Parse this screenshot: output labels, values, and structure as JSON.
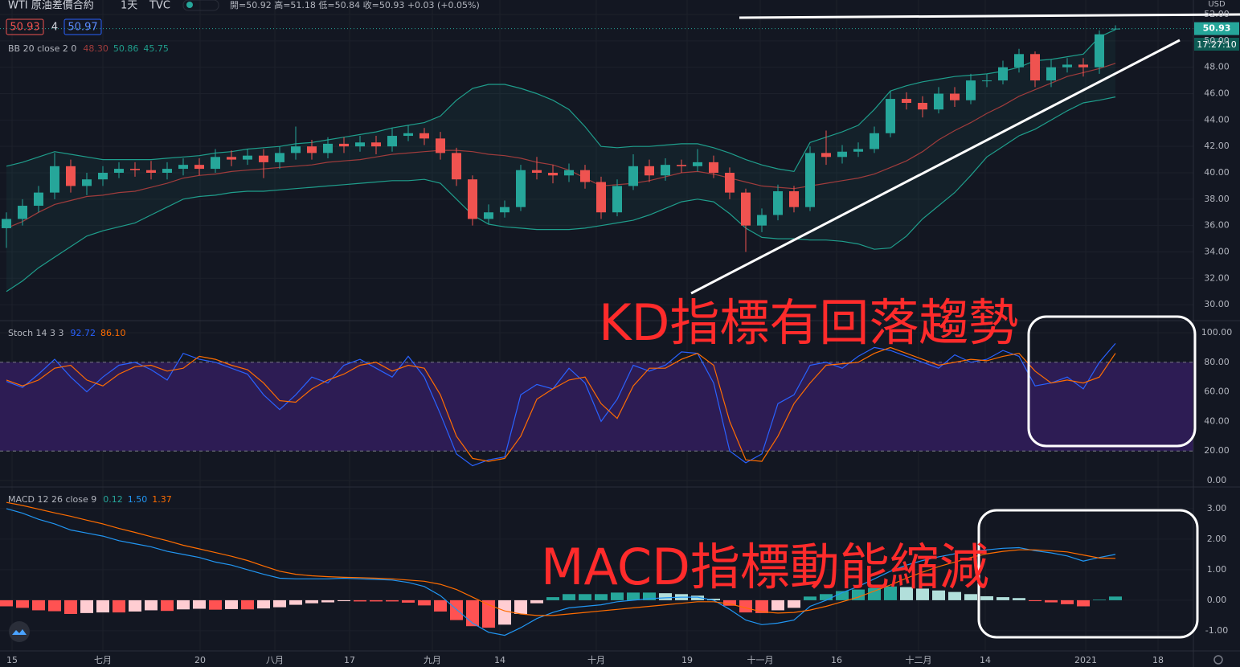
{
  "header": {
    "symbol": "WTI 原油差價合約",
    "interval": "1天",
    "source": "TVC",
    "ohlc": "開=50.92 高=51.18 低=50.84 收=50.93 +0.03 (+0.05%)",
    "bid": "50.93",
    "spread": "4",
    "ask": "50.97",
    "currency": "USD",
    "countdown": "17:27:10"
  },
  "annotations": [
    "KD指標有回落趨勢",
    "MACD指標動能縮減"
  ],
  "chart_data": [
    {
      "type": "candlestick",
      "legend": "BB 20 close 2 0",
      "up_color": "#26a69a",
      "down_color": "#ef5350",
      "xlim": [
        -0.4,
        73.85
      ],
      "xticks": [
        {
          "value": 0.35,
          "label": "15"
        },
        {
          "value": 6,
          "label": "七月"
        },
        {
          "value": 12.05,
          "label": "20"
        },
        {
          "value": 16.7,
          "label": "八月"
        },
        {
          "value": 21.35,
          "label": "17"
        },
        {
          "value": 26.5,
          "label": "九月"
        },
        {
          "value": 30.7,
          "label": "14"
        },
        {
          "value": 36.7,
          "label": "十月"
        },
        {
          "value": 42.35,
          "label": "19"
        },
        {
          "value": 46.9,
          "label": "十一月"
        },
        {
          "value": 51.65,
          "label": "16"
        },
        {
          "value": 56.75,
          "label": "十二月"
        },
        {
          "value": 60.9,
          "label": "14"
        },
        {
          "value": 67.15,
          "label": "2021"
        },
        {
          "value": 71.65,
          "label": "18"
        }
      ],
      "ylim": [
        28.85,
        53.1
      ],
      "yticks": [
        {
          "value": 30,
          "label": "30.00"
        },
        {
          "value": 32,
          "label": "32.00"
        },
        {
          "value": 34,
          "label": "34.00"
        },
        {
          "value": 36,
          "label": "36.00"
        },
        {
          "value": 38,
          "label": "38.00"
        },
        {
          "value": 40,
          "label": "40.00"
        },
        {
          "value": 42,
          "label": "42.00"
        },
        {
          "value": 44,
          "label": "44.00"
        },
        {
          "value": 46,
          "label": "46.00"
        },
        {
          "value": 48,
          "label": "48.00"
        },
        {
          "value": 50,
          "label": "50.00"
        },
        {
          "value": 52,
          "label": "52.00"
        }
      ],
      "last_price": {
        "value": 50.93,
        "label": "50.93"
      },
      "open": [
        35.8,
        36.5,
        37.5,
        38.5,
        40.5,
        39.0,
        39.5,
        40.0,
        40.3,
        40.2,
        40.0,
        40.3,
        40.6,
        40.3,
        41.2,
        41.0,
        41.3,
        40.8,
        41.5,
        42.0,
        41.5,
        42.2,
        42.0,
        42.3,
        42.0,
        42.8,
        43.0,
        42.6,
        41.5,
        39.5,
        36.5,
        37.0,
        37.4,
        40.2,
        40.0,
        39.8,
        40.2,
        39.3,
        37.0,
        39.0,
        40.5,
        39.8,
        40.6,
        40.5,
        40.8,
        40.0,
        38.5,
        36.0,
        36.8,
        38.6,
        37.4,
        41.5,
        41.2,
        41.6,
        41.8,
        43.0,
        45.6,
        45.3,
        44.8,
        46.0,
        45.5,
        47.0,
        47.0,
        48.0,
        49.0,
        47.0,
        48.0,
        48.2,
        48.0,
        50.92
      ],
      "high": [
        37.0,
        38.0,
        39.0,
        41.5,
        41.0,
        40.0,
        40.5,
        40.8,
        40.8,
        40.9,
        40.8,
        41.1,
        41.1,
        41.8,
        41.7,
        41.8,
        41.8,
        42.0,
        43.5,
        42.5,
        42.7,
        42.7,
        42.8,
        42.8,
        43.4,
        43.6,
        43.4,
        43.1,
        41.9,
        39.8,
        37.6,
        37.9,
        40.6,
        41.2,
        40.6,
        40.7,
        40.6,
        39.7,
        39.5,
        41.4,
        41.0,
        41.1,
        41.0,
        41.8,
        41.3,
        40.4,
        38.8,
        37.3,
        39.1,
        39.0,
        42.0,
        43.2,
        42.1,
        42.3,
        43.5,
        46.2,
        46.1,
        45.8,
        46.5,
        46.5,
        47.5,
        47.5,
        48.5,
        49.4,
        49.2,
        48.6,
        48.7,
        48.7,
        50.8,
        51.18
      ],
      "low": [
        34.3,
        36.0,
        37.0,
        38.0,
        38.5,
        38.3,
        39.0,
        39.6,
        39.7,
        39.5,
        39.5,
        39.8,
        39.8,
        40.0,
        40.5,
        40.6,
        39.6,
        40.3,
        41.0,
        41.0,
        41.1,
        41.5,
        41.6,
        41.4,
        41.6,
        42.4,
        42.1,
        41.0,
        39.0,
        36.0,
        36.1,
        36.6,
        37.1,
        39.5,
        39.2,
        39.3,
        38.8,
        36.5,
        36.7,
        38.7,
        39.3,
        39.4,
        40.0,
        40.1,
        39.6,
        38.0,
        34.0,
        35.5,
        36.4,
        37.0,
        37.1,
        40.6,
        40.7,
        41.2,
        41.5,
        42.7,
        44.8,
        44.2,
        44.5,
        45.0,
        45.2,
        46.5,
        46.7,
        47.6,
        46.5,
        46.5,
        47.6,
        47.3,
        47.5,
        50.84
      ],
      "close": [
        36.5,
        37.5,
        38.5,
        40.5,
        39.0,
        39.5,
        40.0,
        40.3,
        40.2,
        40.0,
        40.3,
        40.6,
        40.3,
        41.2,
        41.0,
        41.3,
        40.8,
        41.5,
        42.0,
        41.5,
        42.2,
        42.0,
        42.3,
        42.0,
        42.8,
        43.0,
        42.6,
        41.5,
        39.5,
        36.5,
        37.0,
        37.4,
        40.2,
        40.0,
        39.8,
        40.2,
        39.3,
        37.0,
        39.0,
        40.5,
        39.8,
        40.6,
        40.5,
        40.8,
        40.0,
        38.5,
        36.0,
        36.8,
        38.6,
        37.4,
        41.5,
        41.2,
        41.6,
        41.8,
        43.0,
        45.6,
        45.3,
        44.8,
        46.0,
        45.5,
        47.0,
        47.0,
        48.0,
        49.0,
        47.0,
        48.0,
        48.2,
        48.0,
        50.5,
        50.93
      ],
      "band_fill": "rgba(33,150,140,0.08)",
      "series": [
        {
          "color": "#a03c3c",
          "value_label": "48.30",
          "values": [
            35.8,
            36.3,
            37.0,
            37.6,
            37.9,
            38.2,
            38.3,
            38.5,
            38.6,
            38.9,
            39.2,
            39.6,
            39.8,
            39.9,
            40.1,
            40.2,
            40.3,
            40.4,
            40.5,
            40.6,
            40.8,
            40.9,
            41.0,
            41.2,
            41.4,
            41.5,
            41.6,
            41.7,
            41.7,
            41.6,
            41.4,
            41.3,
            41.1,
            40.8,
            40.6,
            40.2,
            39.6,
            39.0,
            39.1,
            39.2,
            39.4,
            39.7,
            40.0,
            40.1,
            39.9,
            39.6,
            39.3,
            39.0,
            38.9,
            38.8,
            39.0,
            39.2,
            39.4,
            39.6,
            39.9,
            40.4,
            40.9,
            41.6,
            42.5,
            43.2,
            43.8,
            44.5,
            45.1,
            45.8,
            46.3,
            46.8,
            47.3,
            47.6,
            47.9,
            48.3
          ]
        },
        {
          "color": "#1f9e8c",
          "value_label": "50.86",
          "values": [
            40.5,
            40.8,
            41.2,
            41.6,
            41.4,
            41.2,
            41.0,
            41.0,
            41.0,
            41.0,
            41.1,
            41.2,
            41.3,
            41.5,
            41.6,
            41.8,
            41.9,
            42.0,
            42.2,
            42.3,
            42.5,
            42.7,
            42.9,
            43.1,
            43.4,
            43.6,
            43.8,
            44.3,
            45.5,
            46.4,
            46.7,
            46.7,
            46.4,
            46.0,
            45.5,
            44.8,
            43.5,
            42.0,
            41.9,
            42.0,
            42.0,
            42.1,
            42.2,
            42.2,
            41.9,
            41.5,
            41.0,
            40.6,
            40.3,
            40.1,
            42.3,
            42.7,
            43.1,
            43.6,
            44.8,
            46.2,
            46.6,
            46.9,
            47.1,
            47.3,
            47.4,
            47.5,
            47.7,
            48.0,
            48.5,
            48.6,
            48.8,
            49.0,
            50.3,
            50.86
          ]
        },
        {
          "color": "#1f9e8c",
          "value_label": "45.75",
          "values": [
            31.0,
            31.8,
            32.8,
            33.6,
            34.4,
            35.2,
            35.6,
            35.9,
            36.2,
            36.8,
            37.4,
            38.0,
            38.2,
            38.3,
            38.5,
            38.6,
            38.6,
            38.7,
            38.8,
            38.9,
            39.0,
            39.1,
            39.2,
            39.3,
            39.4,
            39.4,
            39.5,
            39.2,
            38.0,
            36.8,
            36.1,
            35.9,
            35.8,
            35.7,
            35.7,
            35.7,
            35.8,
            36.0,
            36.2,
            36.4,
            36.8,
            37.3,
            37.8,
            38.0,
            37.8,
            36.9,
            35.8,
            35.1,
            35.0,
            35.0,
            34.9,
            34.9,
            34.8,
            34.6,
            34.2,
            34.3,
            35.2,
            36.5,
            37.5,
            38.5,
            39.8,
            41.2,
            42.0,
            42.8,
            43.3,
            44.0,
            44.7,
            45.3,
            45.5,
            45.75
          ]
        }
      ]
    },
    {
      "type": "line",
      "legend": "Stoch 14 3 3",
      "ylim": [
        -3.8,
        107.6
      ],
      "yticks": [
        {
          "value": 0,
          "label": "0.00"
        },
        {
          "value": 20,
          "label": "20.00"
        },
        {
          "value": 40,
          "label": "40.00"
        },
        {
          "value": 60,
          "label": "60.00"
        },
        {
          "value": 80,
          "label": "80.00"
        },
        {
          "value": 100,
          "label": "100.00"
        }
      ],
      "band": [
        20,
        80
      ],
      "band_color": "#2d1c54",
      "series": [
        {
          "color": "#2962ff",
          "value_label": "92.72",
          "values": [
            67,
            63,
            72,
            82,
            70,
            60,
            70,
            78,
            80,
            75,
            68,
            86,
            82,
            80,
            76,
            72,
            58,
            48,
            58,
            70,
            66,
            78,
            82,
            76,
            70,
            84,
            70,
            45,
            18,
            10,
            14,
            16,
            58,
            65,
            62,
            76,
            66,
            40,
            55,
            78,
            74,
            78,
            87,
            86,
            66,
            20,
            12,
            18,
            52,
            58,
            78,
            80,
            76,
            84,
            90,
            88,
            84,
            80,
            76,
            85,
            80,
            82,
            88,
            84,
            64,
            66,
            70,
            62,
            80,
            92.72
          ]
        },
        {
          "color": "#ff6d00",
          "value_label": "86.10",
          "values": [
            68,
            64,
            68,
            76,
            78,
            68,
            64,
            72,
            77,
            78,
            74,
            76,
            84,
            82,
            78,
            75,
            66,
            54,
            53,
            62,
            68,
            72,
            78,
            80,
            74,
            78,
            76,
            58,
            30,
            15,
            13,
            15,
            30,
            55,
            62,
            68,
            70,
            52,
            42,
            64,
            76,
            76,
            82,
            86,
            78,
            40,
            14,
            13,
            30,
            52,
            66,
            78,
            79,
            80,
            86,
            90,
            86,
            82,
            78,
            80,
            82,
            81,
            84,
            86,
            74,
            66,
            68,
            66,
            70,
            86.1
          ]
        }
      ]
    },
    {
      "type": "macd",
      "legend": "MACD 12 26 close 9",
      "ylim": [
        -1.66,
        3.68
      ],
      "yticks": [
        {
          "value": -1,
          "label": "-1.00"
        },
        {
          "value": 0,
          "label": "0.00"
        },
        {
          "value": 1,
          "label": "1.00"
        },
        {
          "value": 2,
          "label": "2.00"
        },
        {
          "value": 3,
          "label": "3.00"
        }
      ],
      "histogram": {
        "value_label": "0.12",
        "colors": {
          "pos_up": "#26a69a",
          "pos_down": "#b2dfdb",
          "neg_down": "#ff5252",
          "neg_up": "#ffcdd2"
        },
        "values": [
          -0.2,
          -0.25,
          -0.33,
          -0.36,
          -0.45,
          -0.42,
          -0.4,
          -0.4,
          -0.37,
          -0.33,
          -0.35,
          -0.3,
          -0.28,
          -0.31,
          -0.29,
          -0.3,
          -0.27,
          -0.23,
          -0.15,
          -0.1,
          -0.07,
          -0.03,
          -0.04,
          -0.04,
          -0.04,
          -0.08,
          -0.17,
          -0.37,
          -0.65,
          -0.85,
          -0.9,
          -0.8,
          -0.45,
          -0.1,
          0.1,
          0.2,
          0.2,
          0.2,
          0.25,
          0.25,
          0.25,
          0.23,
          0.2,
          0.15,
          0.05,
          -0.18,
          -0.4,
          -0.42,
          -0.33,
          -0.25,
          0.12,
          0.2,
          0.3,
          0.35,
          0.4,
          0.45,
          0.43,
          0.38,
          0.32,
          0.27,
          0.2,
          0.13,
          0.1,
          0.07,
          -0.03,
          -0.07,
          -0.13,
          -0.2,
          0.02,
          0.12
        ]
      },
      "series": [
        {
          "color": "#2196f3",
          "value_label": "1.50",
          "values": [
            3.0,
            2.85,
            2.65,
            2.5,
            2.3,
            2.2,
            2.1,
            1.95,
            1.85,
            1.75,
            1.6,
            1.5,
            1.4,
            1.25,
            1.15,
            1.0,
            0.85,
            0.72,
            0.7,
            0.7,
            0.7,
            0.72,
            0.7,
            0.68,
            0.66,
            0.58,
            0.45,
            0.15,
            -0.3,
            -0.75,
            -1.05,
            -1.15,
            -0.9,
            -0.6,
            -0.4,
            -0.25,
            -0.2,
            -0.15,
            -0.05,
            0.0,
            0.05,
            0.08,
            0.1,
            0.1,
            0.0,
            -0.3,
            -0.65,
            -0.8,
            -0.75,
            -0.65,
            -0.2,
            0.0,
            0.25,
            0.45,
            0.7,
            0.95,
            1.15,
            1.3,
            1.42,
            1.52,
            1.6,
            1.65,
            1.7,
            1.72,
            1.62,
            1.55,
            1.45,
            1.28,
            1.4,
            1.5
          ]
        },
        {
          "color": "#ff6d00",
          "value_label": "1.37",
          "values": [
            3.2,
            3.1,
            2.98,
            2.86,
            2.75,
            2.62,
            2.5,
            2.35,
            2.22,
            2.08,
            1.95,
            1.8,
            1.68,
            1.56,
            1.44,
            1.3,
            1.12,
            0.95,
            0.85,
            0.8,
            0.77,
            0.75,
            0.74,
            0.72,
            0.7,
            0.66,
            0.62,
            0.52,
            0.35,
            0.1,
            -0.15,
            -0.35,
            -0.45,
            -0.5,
            -0.5,
            -0.45,
            -0.4,
            -0.35,
            -0.3,
            -0.25,
            -0.2,
            -0.15,
            -0.1,
            -0.05,
            -0.05,
            -0.12,
            -0.25,
            -0.38,
            -0.42,
            -0.4,
            -0.32,
            -0.2,
            -0.05,
            0.1,
            0.3,
            0.5,
            0.72,
            0.92,
            1.1,
            1.25,
            1.4,
            1.52,
            1.6,
            1.65,
            1.65,
            1.62,
            1.58,
            1.48,
            1.38,
            1.37
          ]
        }
      ]
    }
  ]
}
